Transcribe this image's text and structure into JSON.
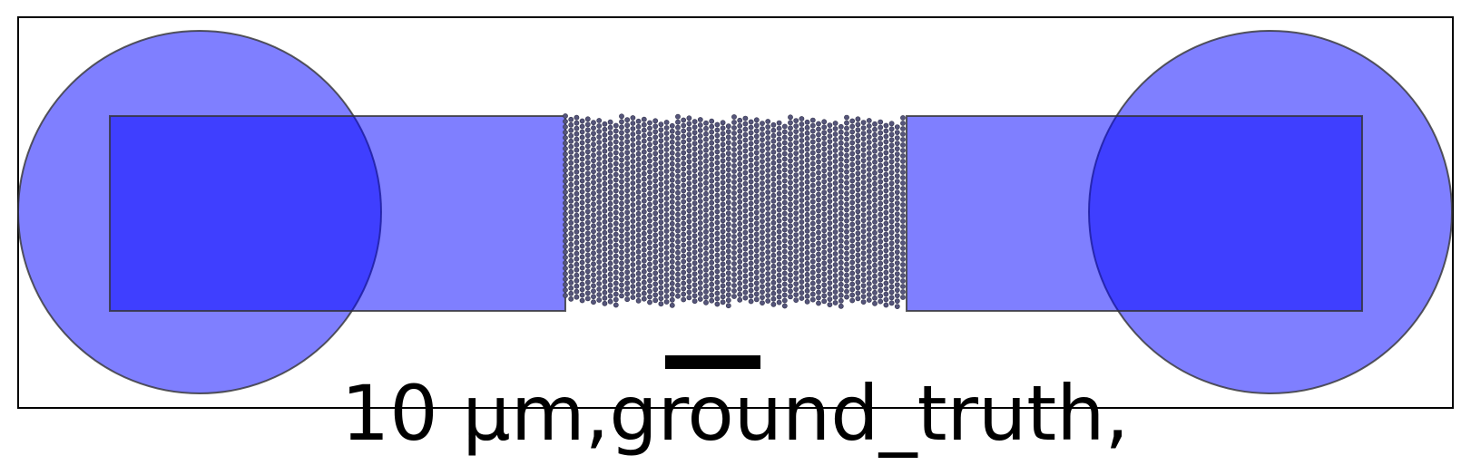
{
  "scale_bar": {
    "label": "10 µm"
  },
  "caption": {
    "text": "10 µm,ground_truth,"
  },
  "colors": {
    "pad_fill": "#0000ff",
    "pad_opacity": 0.5,
    "outline": "#333333",
    "atom_fill": "#55557a",
    "frame": "#000000",
    "background": "#ffffff"
  }
}
